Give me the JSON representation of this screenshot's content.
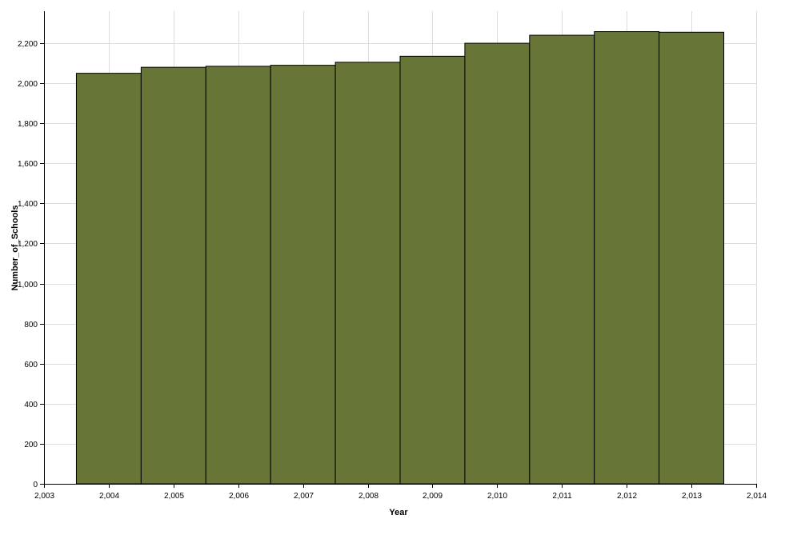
{
  "chart_data": {
    "type": "bar",
    "xlabel": "Year",
    "ylabel": "Number_of_Schools",
    "x": [
      2004,
      2005,
      2006,
      2007,
      2008,
      2009,
      2010,
      2011,
      2012,
      2013
    ],
    "values": [
      2050,
      2080,
      2085,
      2090,
      2105,
      2135,
      2200,
      2240,
      2258,
      2255
    ],
    "xlim": [
      2003,
      2014
    ],
    "ylim": [
      0,
      2360
    ],
    "x_ticks": [
      2003,
      2004,
      2005,
      2006,
      2007,
      2008,
      2009,
      2010,
      2011,
      2012,
      2013,
      2014
    ],
    "x_tick_labels": [
      "2,003",
      "2,004",
      "2,005",
      "2,006",
      "2,007",
      "2,008",
      "2,009",
      "2,010",
      "2,011",
      "2,012",
      "2,013",
      "2,014"
    ],
    "y_ticks": [
      0,
      200,
      400,
      600,
      800,
      1000,
      1200,
      1400,
      1600,
      1800,
      2000,
      2200
    ],
    "y_tick_labels": [
      "0",
      "200",
      "400",
      "600",
      "800",
      "1,000",
      "1,200",
      "1,400",
      "1,600",
      "1,800",
      "2,000",
      "2,200"
    ],
    "grid": true,
    "legend": "none",
    "colors": {
      "bar_fill": "#677537",
      "bar_stroke": "#000000",
      "grid": "#dddddd",
      "axis": "#000000"
    }
  }
}
